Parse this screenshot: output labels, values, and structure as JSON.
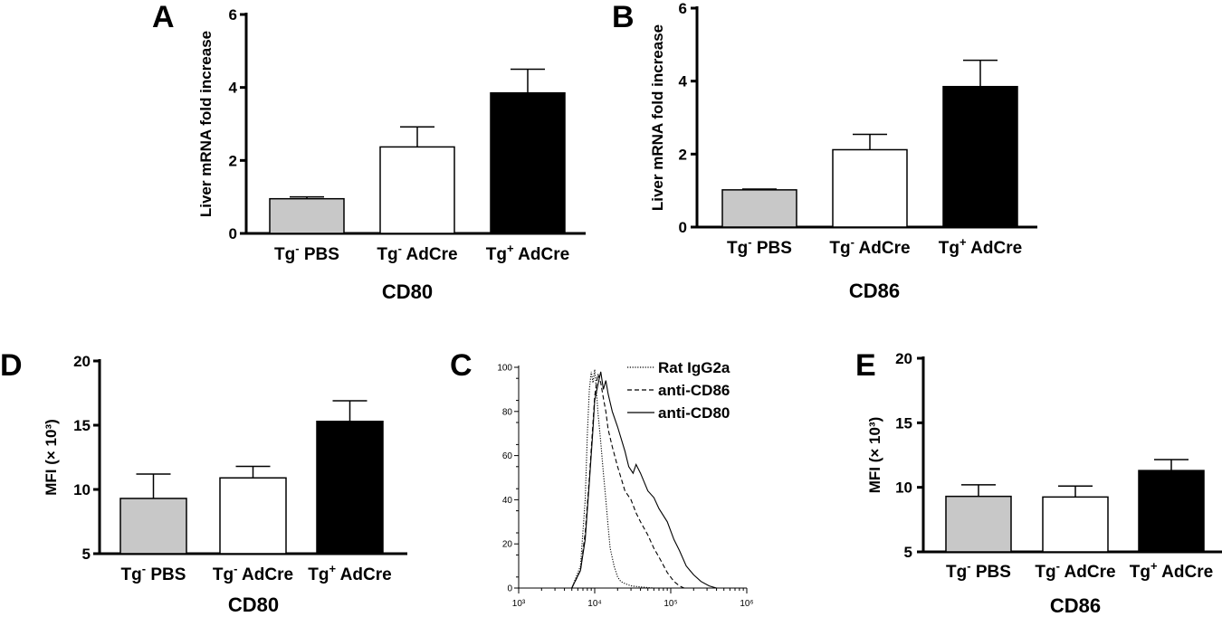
{
  "colors": {
    "gray": "#c8c8c8",
    "white": "#ffffff",
    "black": "#000000"
  },
  "chart_data": [
    {
      "panel": "A",
      "type": "bar",
      "categories": [
        "Tg- PBS",
        "Tg- AdCre",
        "Tg+ AdCre"
      ],
      "category_parts": [
        [
          "Tg",
          "-",
          " PBS"
        ],
        [
          "Tg",
          "-",
          " AdCre"
        ],
        [
          "Tg",
          "+",
          " AdCre"
        ]
      ],
      "values": [
        0.95,
        2.37,
        3.85
      ],
      "errors": [
        0.05,
        0.55,
        0.65
      ],
      "fills": [
        "gray",
        "white",
        "black"
      ],
      "ylabel": "Liver mRNA fold increase",
      "xlabel": "CD80",
      "ylim": [
        0,
        6
      ],
      "yticks": [
        "0",
        "2",
        "4",
        "6"
      ]
    },
    {
      "panel": "B",
      "type": "bar",
      "categories": [
        "Tg- PBS",
        "Tg- AdCre",
        "Tg+ AdCre"
      ],
      "category_parts": [
        [
          "Tg",
          "-",
          " PBS"
        ],
        [
          "Tg",
          "-",
          " AdCre"
        ],
        [
          "Tg",
          "+",
          " AdCre"
        ]
      ],
      "values": [
        1.02,
        2.12,
        3.85
      ],
      "errors": [
        0.02,
        0.42,
        0.72
      ],
      "fills": [
        "gray",
        "white",
        "black"
      ],
      "ylabel": "Liver mRNA fold increase",
      "xlabel": "CD86",
      "ylim": [
        0,
        6
      ],
      "yticks": [
        "0",
        "2",
        "4",
        "6"
      ]
    },
    {
      "panel": "D",
      "type": "bar",
      "categories": [
        "Tg- PBS",
        "Tg- AdCre",
        "Tg+ AdCre"
      ],
      "category_parts": [
        [
          "Tg",
          "-",
          " PBS"
        ],
        [
          "Tg",
          "-",
          " AdCre"
        ],
        [
          "Tg",
          "+",
          " AdCre"
        ]
      ],
      "values": [
        9.3,
        10.9,
        15.3
      ],
      "errors": [
        1.9,
        0.9,
        1.6
      ],
      "fills": [
        "gray",
        "white",
        "black"
      ],
      "ylabel": "MFI (× 10³)",
      "xlabel": "CD80",
      "ylim": [
        5,
        20
      ],
      "yticks": [
        "5",
        "10",
        "15",
        "20"
      ]
    },
    {
      "panel": "C",
      "type": "line",
      "xscale": "log",
      "xlim": [
        1000,
        1000000
      ],
      "ylim": [
        0,
        100
      ],
      "xticks": [
        "10³",
        "10⁴",
        "10⁵",
        "10⁶"
      ],
      "yticks": [
        "0",
        "20",
        "40",
        "60",
        "80",
        "100"
      ],
      "series": [
        {
          "name": "Rat IgG2a",
          "style": "dotted",
          "x": [
            5000,
            6500,
            7500,
            8000,
            8500,
            9000,
            9500,
            10000,
            10500,
            11000,
            12000,
            13000,
            14000,
            15000,
            16000,
            18000,
            20000,
            22000,
            25000,
            30000,
            40000,
            60000,
            100000
          ],
          "y": [
            0,
            10,
            40,
            70,
            90,
            98,
            93,
            99,
            90,
            80,
            66,
            52,
            40,
            28,
            18,
            10,
            5,
            3,
            2,
            1,
            0.5,
            0,
            0
          ]
        },
        {
          "name": "anti-CD86",
          "style": "dashed",
          "x": [
            5000,
            6500,
            7500,
            8500,
            9500,
            10000,
            11000,
            12000,
            13000,
            14000,
            15000,
            17000,
            20000,
            25000,
            30000,
            35000,
            40000,
            50000,
            60000,
            70000,
            90000,
            110000,
            130000,
            150000
          ],
          "y": [
            0,
            8,
            25,
            50,
            75,
            87,
            97,
            93,
            86,
            80,
            72,
            64,
            55,
            44,
            40,
            34,
            30,
            24,
            18,
            14,
            7,
            3,
            1,
            0
          ]
        },
        {
          "name": "anti-CD80",
          "style": "solid",
          "x": [
            5000,
            6500,
            7500,
            8500,
            9500,
            10000,
            11000,
            12000,
            13000,
            14000,
            15000,
            17000,
            20000,
            25000,
            28000,
            32000,
            35000,
            40000,
            50000,
            60000,
            70000,
            90000,
            110000,
            130000,
            160000,
            200000,
            250000,
            320000,
            400000
          ],
          "y": [
            0,
            8,
            22,
            48,
            72,
            85,
            92,
            98,
            90,
            94,
            88,
            80,
            73,
            62,
            55,
            52,
            56,
            52,
            44,
            41,
            36,
            30,
            22,
            17,
            10,
            6,
            3,
            1,
            0
          ]
        }
      ]
    },
    {
      "panel": "E",
      "type": "bar",
      "categories": [
        "Tg- PBS",
        "Tg- AdCre",
        "Tg+ AdCre"
      ],
      "category_parts": [
        [
          "Tg",
          "-",
          " PBS"
        ],
        [
          "Tg",
          "-",
          " AdCre"
        ],
        [
          "Tg",
          "+",
          " AdCre"
        ]
      ],
      "values": [
        9.3,
        9.25,
        11.3
      ],
      "errors": [
        0.9,
        0.85,
        0.85
      ],
      "fills": [
        "gray",
        "white",
        "black"
      ],
      "ylabel": "MFI (× 10³)",
      "xlabel": "CD86",
      "ylim": [
        5,
        20
      ],
      "yticks": [
        "5",
        "10",
        "15",
        "20"
      ]
    }
  ]
}
